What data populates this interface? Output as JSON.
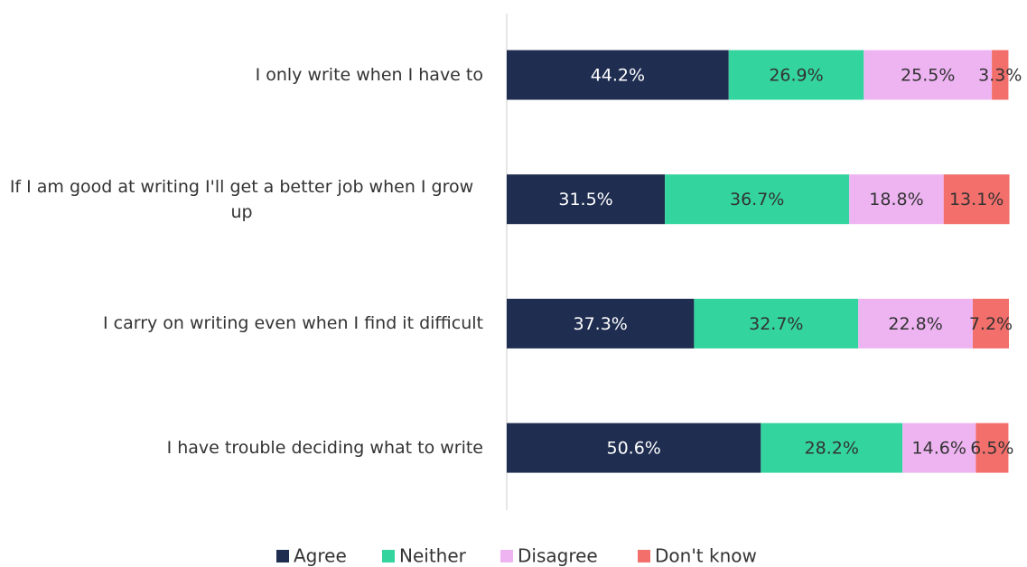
{
  "chart_data": {
    "type": "stacked-bar-horizontal",
    "categories": [
      "I only write when I have to",
      "If I am good at writing I'll get a better job when I grow up",
      "I carry on writing even when I find it difficult",
      "I have trouble deciding what to write"
    ],
    "series": [
      {
        "name": "Agree",
        "color": "#1f2d50",
        "values": [
          44.2,
          31.5,
          37.3,
          50.6
        ],
        "value_labels": [
          "44.2%",
          "31.5%",
          "37.3%",
          "50.6%"
        ]
      },
      {
        "name": "Neither",
        "color": "#33d49e",
        "values": [
          26.9,
          36.7,
          32.7,
          28.2
        ],
        "value_labels": [
          "26.9%",
          "36.7%",
          "32.7%",
          "28.2%"
        ]
      },
      {
        "name": "Disagree",
        "color": "#eeb4f2",
        "values": [
          25.5,
          18.8,
          22.8,
          14.6
        ],
        "value_labels": [
          "25.5%",
          "18.8%",
          "22.8%",
          "14.6%"
        ]
      },
      {
        "name": "Don't know",
        "color": "#f26f6b",
        "values": [
          3.3,
          13.1,
          7.2,
          6.5
        ],
        "value_labels": [
          "3.3%",
          "13.1%",
          "7.2%",
          "6.5%"
        ]
      }
    ],
    "xlim": [
      0,
      100
    ],
    "legend": "bottom"
  }
}
